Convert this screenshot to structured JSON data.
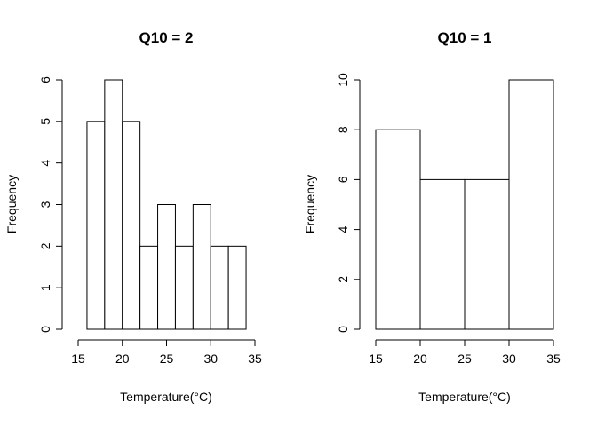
{
  "chart_data": [
    {
      "type": "bar",
      "title": "Q10 = 2",
      "xlabel": "Temperature(°C)",
      "ylabel": "Frequency",
      "bin_edges": [
        16,
        18,
        20,
        22,
        24,
        26,
        28,
        30,
        32,
        34
      ],
      "values": [
        5,
        6,
        5,
        2,
        3,
        2,
        3,
        2,
        2
      ],
      "xlim": [
        15,
        35
      ],
      "ylim": [
        0,
        6
      ],
      "xticks": [
        15,
        20,
        25,
        30,
        35
      ],
      "yticks": [
        0,
        1,
        2,
        3,
        4,
        5,
        6
      ],
      "grid": false
    },
    {
      "type": "bar",
      "title": "Q10 = 1",
      "xlabel": "Temperature(°C)",
      "ylabel": "Frequency",
      "bin_edges": [
        15,
        20,
        25,
        30,
        35
      ],
      "values": [
        8,
        6,
        6,
        10
      ],
      "xlim": [
        15,
        35
      ],
      "ylim": [
        0,
        10
      ],
      "xticks": [
        15,
        20,
        25,
        30,
        35
      ],
      "yticks": [
        0,
        2,
        4,
        6,
        8,
        10
      ],
      "grid": false
    }
  ]
}
